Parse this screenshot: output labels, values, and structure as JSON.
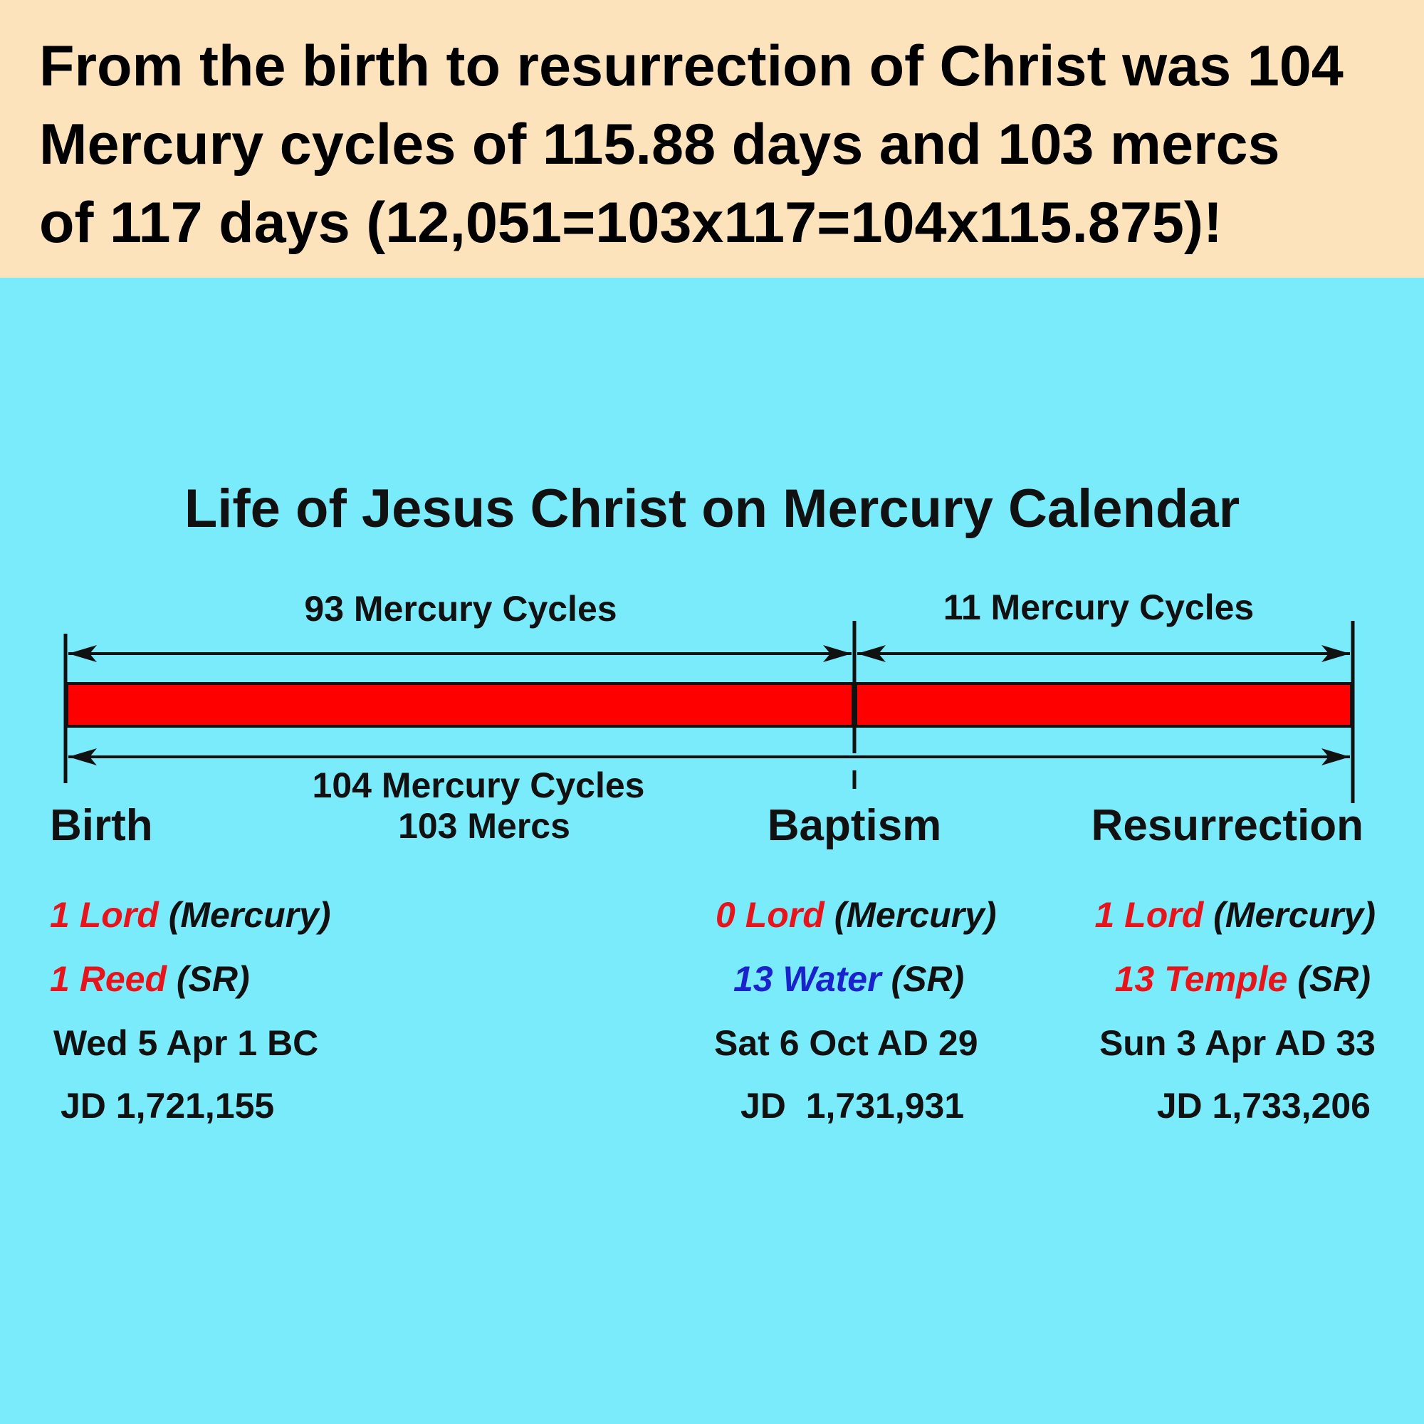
{
  "headline": {
    "line1": "From the birth to resurrection of Christ was 104",
    "line2": "Mercury cycles of 115.88 days and 103 mercs",
    "line3": "of 117 days (12,051=103x117=104x115.875)!"
  },
  "diagram": {
    "title": "Life of Jesus Christ on Mercury Calendar",
    "span_first": "93 Mercury Cycles",
    "span_second": "11 Mercury Cycles",
    "span_total_line1": "104 Mercury Cycles",
    "span_total_line2": "103 Mercs",
    "events": {
      "birth": "Birth",
      "baptism": "Baptism",
      "resurrection": "Resurrection"
    },
    "colors": {
      "bar": "#ff0000",
      "background": "#7aebfb",
      "header": "#fde3bc"
    }
  },
  "details": {
    "birth": {
      "mercury_num": "1",
      "mercury_word": "Lord",
      "mercury_tag": "(Mercury)",
      "sr_num": "1",
      "sr_word": "Reed",
      "sr_tag": "(SR)",
      "date": "Wed 5 Apr 1 BC",
      "jd": "JD 1,721,155"
    },
    "baptism": {
      "mercury_num": "0",
      "mercury_word": "Lord",
      "mercury_tag": "(Mercury)",
      "sr_num": "13",
      "sr_word": "Water",
      "sr_tag": "(SR)",
      "date": "Sat 6 Oct AD 29",
      "jd": "JD  1,731,931"
    },
    "resurrection": {
      "mercury_num": "1",
      "mercury_word": "Lord",
      "mercury_tag": "(Mercury)",
      "sr_num": "13",
      "sr_word": "Temple",
      "sr_tag": "(SR)",
      "date": "Sun 3 Apr AD 33",
      "jd": "JD 1,733,206"
    }
  }
}
